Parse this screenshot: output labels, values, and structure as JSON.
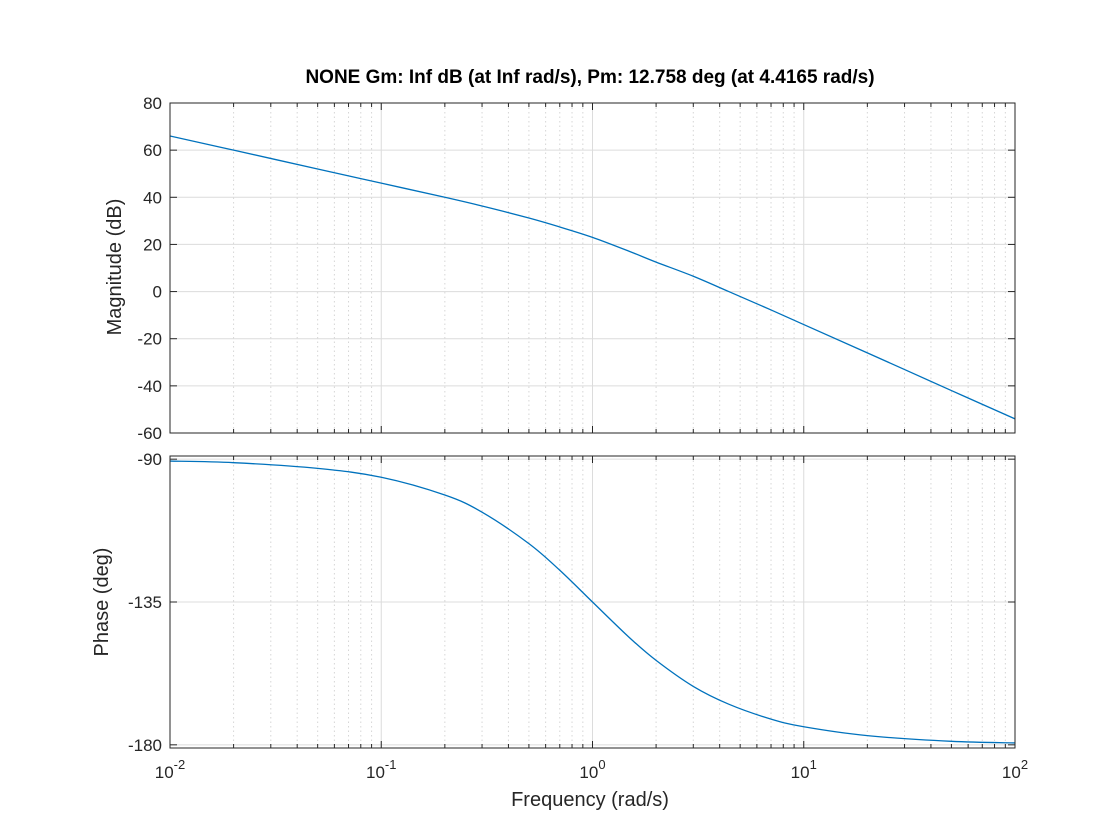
{
  "chart_data": [
    {
      "type": "line",
      "panel": "magnitude",
      "title": "NONE  Gm: Inf dB (at Inf rad/s), Pm: 12.758 deg (at 4.4165 rad/s)",
      "xlabel": "",
      "ylabel": "Magnitude (dB)",
      "x_scale": "log",
      "xlim": [
        0.01,
        100
      ],
      "ylim": [
        -60,
        80
      ],
      "yticks": [
        -60,
        -40,
        -20,
        0,
        20,
        40,
        60,
        80
      ],
      "grid": true,
      "line_color": "#0072BD",
      "series": [
        {
          "x": [
            0.01,
            0.02,
            0.05,
            0.1,
            0.2,
            0.3,
            0.5,
            0.7,
            1,
            1.5,
            2,
            3,
            4.4165,
            7,
            10,
            20,
            50,
            100
          ],
          "y": [
            66.0,
            60.0,
            52.0,
            46.0,
            40.0,
            36.3,
            31.2,
            27.4,
            23.0,
            17.0,
            12.5,
            6.5,
            0.0,
            -7.8,
            -14.0,
            -26.0,
            -42.0,
            -54.0
          ]
        }
      ]
    },
    {
      "type": "line",
      "panel": "phase",
      "title": "",
      "xlabel": "Frequency  (rad/s)",
      "ylabel": "Phase (deg)",
      "x_scale": "log",
      "xlim": [
        0.01,
        100
      ],
      "ylim": [
        -181,
        -89
      ],
      "yticks": [
        -180,
        -135,
        -90
      ],
      "xticks": [
        {
          "value": 0.01,
          "base": "10",
          "exp": "-2"
        },
        {
          "value": 0.1,
          "base": "10",
          "exp": "-1"
        },
        {
          "value": 1,
          "base": "10",
          "exp": "0"
        },
        {
          "value": 10,
          "base": "10",
          "exp": "1"
        },
        {
          "value": 100,
          "base": "10",
          "exp": "2"
        }
      ],
      "grid": true,
      "line_color": "#0072BD",
      "series": [
        {
          "x": [
            0.01,
            0.02,
            0.05,
            0.1,
            0.2,
            0.3,
            0.5,
            0.7,
            1,
            1.5,
            2,
            3,
            4.4165,
            7,
            10,
            20,
            50,
            100
          ],
          "y": [
            -90.6,
            -91.1,
            -92.9,
            -95.7,
            -101.3,
            -106.7,
            -116.6,
            -125.0,
            -135.0,
            -146.3,
            -153.4,
            -161.6,
            -167.2,
            -171.9,
            -174.3,
            -177.1,
            -178.9,
            -179.4
          ]
        }
      ]
    }
  ]
}
